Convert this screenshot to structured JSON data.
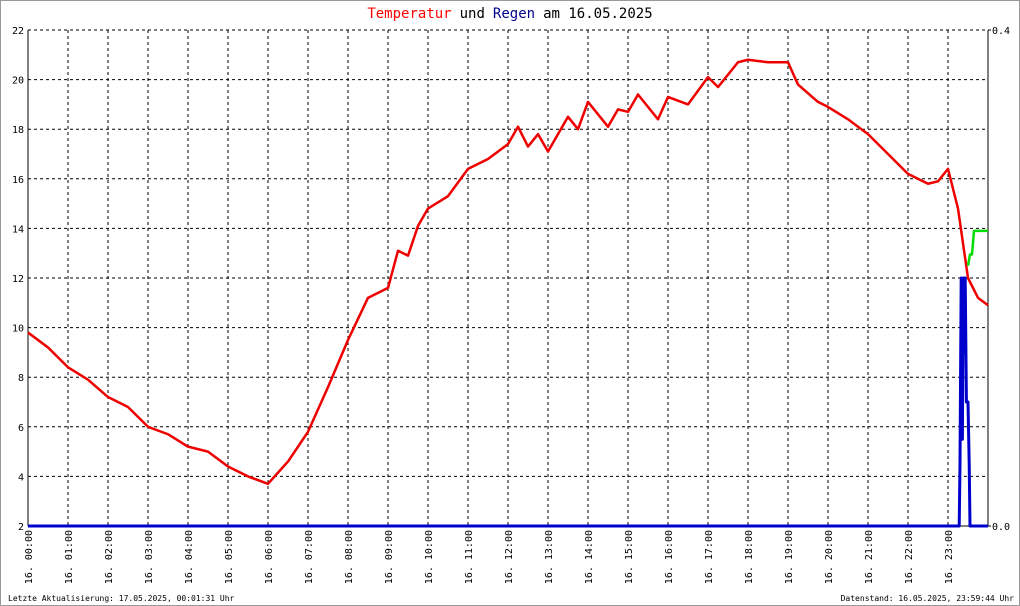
{
  "chart_data": {
    "type": "line",
    "title": [
      {
        "text": "Temperatur",
        "color": "#ff0000"
      },
      {
        "text": "und",
        "color": "#000000"
      },
      {
        "text": "Regen",
        "color": "#00008b"
      },
      {
        "text": "am 16.05.2025",
        "color": "#000000"
      }
    ],
    "footer_left": "Letzte Aktualisierung: 17.05.2025, 00:01:31 Uhr",
    "footer_right": "Datenstand: 16.05.2025, 23:59:44 Uhr",
    "xlim": [
      0,
      24
    ],
    "xticks": [
      {
        "value": 0,
        "label": "16. 00:00"
      },
      {
        "value": 1,
        "label": "16. 01:00"
      },
      {
        "value": 2,
        "label": "16. 02:00"
      },
      {
        "value": 3,
        "label": "16. 03:00"
      },
      {
        "value": 4,
        "label": "16. 04:00"
      },
      {
        "value": 5,
        "label": "16. 05:00"
      },
      {
        "value": 6,
        "label": "16. 06:00"
      },
      {
        "value": 7,
        "label": "16. 07:00"
      },
      {
        "value": 8,
        "label": "16. 08:00"
      },
      {
        "value": 9,
        "label": "16. 09:00"
      },
      {
        "value": 10,
        "label": "16. 10:00"
      },
      {
        "value": 11,
        "label": "16. 11:00"
      },
      {
        "value": 12,
        "label": "16. 12:00"
      },
      {
        "value": 13,
        "label": "16. 13:00"
      },
      {
        "value": 14,
        "label": "16. 14:00"
      },
      {
        "value": 15,
        "label": "16. 15:00"
      },
      {
        "value": 16,
        "label": "16. 16:00"
      },
      {
        "value": 17,
        "label": "16. 17:00"
      },
      {
        "value": 18,
        "label": "16. 18:00"
      },
      {
        "value": 19,
        "label": "16. 19:00"
      },
      {
        "value": 20,
        "label": "16. 20:00"
      },
      {
        "value": 21,
        "label": "16. 21:00"
      },
      {
        "value": 22,
        "label": "16. 22:00"
      },
      {
        "value": 23,
        "label": "16. 23:00"
      }
    ],
    "ylim": [
      2,
      22
    ],
    "yticks": [
      2,
      4,
      6,
      8,
      10,
      12,
      14,
      16,
      18,
      20,
      22
    ],
    "y2lim": [
      0,
      0.4
    ],
    "y2ticks": [
      {
        "value": 0,
        "label": "0.0"
      },
      0.4
    ],
    "grid": true,
    "series": [
      {
        "color": "#ee0000",
        "axis": "y",
        "x": [
          0,
          0.5,
          1,
          1.5,
          2,
          2.5,
          3,
          3.5,
          4,
          4.5,
          5,
          5.5,
          6,
          6.5,
          7,
          7.5,
          8,
          8.5,
          9,
          9.25,
          9.5,
          9.75,
          10,
          10.5,
          11,
          11.5,
          12,
          12.25,
          12.5,
          12.75,
          13,
          13.5,
          13.75,
          14,
          14.5,
          14.75,
          15,
          15.25,
          15.75,
          16,
          16.5,
          17,
          17.25,
          17.75,
          18,
          18.5,
          19,
          19.25,
          19.75,
          20,
          20.5,
          21,
          21.5,
          22,
          22.5,
          22.75,
          23,
          23.25,
          23.5,
          23.75,
          24
        ],
        "values": [
          9.8,
          9.2,
          8.4,
          7.9,
          7.2,
          6.8,
          6.0,
          5.7,
          5.2,
          5.0,
          4.4,
          4.0,
          3.7,
          4.6,
          5.8,
          7.6,
          9.5,
          11.2,
          11.6,
          13.1,
          12.9,
          14.1,
          14.8,
          15.3,
          16.4,
          16.8,
          17.4,
          18.1,
          17.3,
          17.8,
          17.1,
          18.5,
          18.0,
          19.1,
          18.1,
          18.8,
          18.7,
          19.4,
          18.4,
          19.3,
          19.0,
          20.1,
          19.7,
          20.7,
          20.8,
          20.7,
          20.7,
          19.8,
          19.1,
          18.9,
          18.4,
          17.8,
          17.0,
          16.2,
          15.8,
          15.9,
          16.4,
          14.8,
          12.0,
          11.2,
          10.9
        ]
      },
      {
        "color": "#0000cc",
        "axis": "y2",
        "x": [
          0,
          23.28,
          23.3,
          23.33,
          23.36,
          23.38,
          23.4,
          23.43,
          23.46,
          23.48,
          23.5,
          23.53,
          23.55,
          23.58,
          24
        ],
        "values": [
          0,
          0,
          0.05,
          0.2,
          0.07,
          0.2,
          0.14,
          0.2,
          0.1,
          0.1,
          0.1,
          0.05,
          0,
          0,
          0
        ]
      },
      {
        "color": "#00dd00",
        "axis": "y2",
        "x": [
          23.5,
          23.55,
          23.6,
          23.65,
          23.7,
          24
        ],
        "values": [
          0.21,
          0.219,
          0.219,
          0.238,
          0.238,
          0.238
        ]
      }
    ]
  }
}
